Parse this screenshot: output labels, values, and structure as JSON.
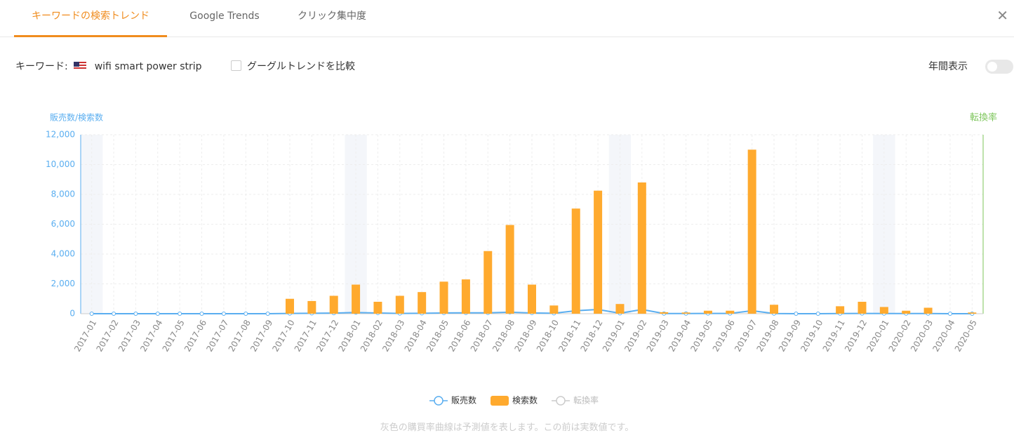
{
  "tabs": [
    "キーワードの検索トレンド",
    "Google Trends",
    "クリック集中度"
  ],
  "keyword_label": "キーワード:",
  "keyword": "wifi smart power strip",
  "compare_label": "グーグルトレンドを比較",
  "annual_label": "年間表示",
  "note": "灰色の購買率曲線は予測値を表します。この前は実数値です。",
  "chart_data": {
    "type": "bar",
    "y_label": "販売数/検索数",
    "y2_label": "転換率",
    "categories": [
      "2017-01",
      "2017-02",
      "2017-03",
      "2017-04",
      "2017-05",
      "2017-06",
      "2017-07",
      "2017-08",
      "2017-09",
      "2017-10",
      "2017-11",
      "2017-12",
      "2018-01",
      "2018-02",
      "2018-03",
      "2018-04",
      "2018-05",
      "2018-06",
      "2018-07",
      "2018-08",
      "2018-09",
      "2018-10",
      "2018-11",
      "2018-12",
      "2019-01",
      "2019-02",
      "2019-03",
      "2019-04",
      "2019-05",
      "2019-06",
      "2019-07",
      "2019-08",
      "2019-09",
      "2019-10",
      "2019-11",
      "2019-12",
      "2020-01",
      "2020-02",
      "2020-03",
      "2020-04",
      "2020-05"
    ],
    "series": [
      {
        "name": "販売数",
        "type": "line",
        "color": "#5aaef0",
        "values": [
          0,
          0,
          0,
          0,
          0,
          0,
          0,
          0,
          0,
          20,
          30,
          40,
          80,
          50,
          20,
          30,
          50,
          60,
          60,
          100,
          50,
          30,
          200,
          280,
          30,
          280,
          10,
          10,
          20,
          20,
          200,
          10,
          0,
          0,
          10,
          20,
          10,
          10,
          10,
          0,
          0
        ]
      },
      {
        "name": "検索数",
        "type": "bar",
        "color": "#ffaa2e",
        "values": [
          0,
          0,
          0,
          0,
          0,
          0,
          0,
          0,
          0,
          1000,
          850,
          1200,
          1950,
          800,
          1200,
          1450,
          2150,
          2300,
          4200,
          5950,
          1950,
          550,
          7050,
          8250,
          650,
          8800,
          100,
          80,
          200,
          200,
          11000,
          600,
          0,
          0,
          500,
          800,
          450,
          200,
          400,
          0,
          80
        ]
      },
      {
        "name": "転換率",
        "type": "line",
        "axis": "y2",
        "color": "#cccccc",
        "visible": false
      }
    ],
    "ylim": [
      0,
      12000
    ],
    "yticks": [
      0,
      {
        "value": 2000,
        "label": "2,000"
      },
      {
        "value": 4000,
        "label": "4,000"
      },
      {
        "value": 6000,
        "label": "6,000"
      },
      {
        "value": 8000,
        "label": "8,000"
      },
      {
        "value": 10000,
        "label": "10,000"
      },
      {
        "value": 12000,
        "label": "12,000"
      }
    ],
    "grid": true
  }
}
